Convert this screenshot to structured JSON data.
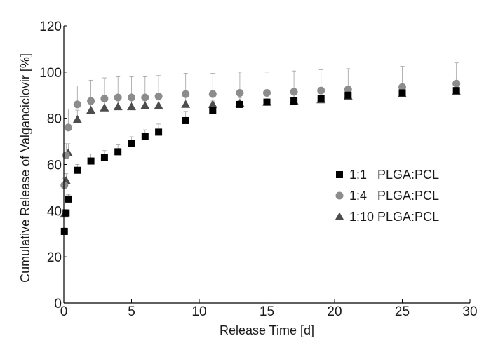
{
  "chart_data": {
    "type": "scatter",
    "xlabel": "Release Time [d]",
    "ylabel": "Cumulative Release of Valganciclovir [%]",
    "xlim": [
      0,
      30
    ],
    "ylim": [
      0,
      120
    ],
    "xticks": [
      "0",
      "5",
      "10",
      "15",
      "20",
      "25",
      "30"
    ],
    "yticks": [
      "0",
      "20",
      "40",
      "60",
      "80",
      "100",
      "120"
    ],
    "grid": false,
    "legend_position": "right",
    "series": [
      {
        "name": "1:1   PLGA:PCL",
        "marker": "square",
        "color": "#000000",
        "points": [
          {
            "x": 0.04,
            "y": 31,
            "err": 1.5
          },
          {
            "x": 0.17,
            "y": 39,
            "err": 1.5
          },
          {
            "x": 0.33,
            "y": 45,
            "err": 2
          },
          {
            "x": 1,
            "y": 57.5,
            "err": 2.5
          },
          {
            "x": 2,
            "y": 61.5,
            "err": 3
          },
          {
            "x": 3,
            "y": 63,
            "err": 3
          },
          {
            "x": 4,
            "y": 65.5,
            "err": 3
          },
          {
            "x": 5,
            "y": 69,
            "err": 3
          },
          {
            "x": 6,
            "y": 72,
            "err": 3
          },
          {
            "x": 7,
            "y": 74,
            "err": 3.5
          },
          {
            "x": 9,
            "y": 79,
            "err": 4
          },
          {
            "x": 11,
            "y": 83.5,
            "err": 4
          },
          {
            "x": 13,
            "y": 86,
            "err": 3
          },
          {
            "x": 15,
            "y": 87,
            "err": 3
          },
          {
            "x": 17,
            "y": 87.5,
            "err": 3
          },
          {
            "x": 19,
            "y": 88.5,
            "err": 3
          },
          {
            "x": 21,
            "y": 90,
            "err": 3
          },
          {
            "x": 25,
            "y": 91,
            "err": 3
          },
          {
            "x": 29,
            "y": 92,
            "err": 3
          }
        ]
      },
      {
        "name": "1:4   PLGA:PCL",
        "marker": "circle",
        "color": "#8c8c8c",
        "points": [
          {
            "x": 0.04,
            "y": 51,
            "err": 3
          },
          {
            "x": 0.17,
            "y": 64,
            "err": 5
          },
          {
            "x": 0.33,
            "y": 76,
            "err": 8
          },
          {
            "x": 1,
            "y": 86,
            "err": 8
          },
          {
            "x": 2,
            "y": 87.5,
            "err": 9
          },
          {
            "x": 3,
            "y": 88.5,
            "err": 9
          },
          {
            "x": 4,
            "y": 89,
            "err": 9
          },
          {
            "x": 5,
            "y": 89,
            "err": 9
          },
          {
            "x": 6,
            "y": 89,
            "err": 9
          },
          {
            "x": 7,
            "y": 89.5,
            "err": 9
          },
          {
            "x": 9,
            "y": 90.5,
            "err": 9
          },
          {
            "x": 11,
            "y": 90.5,
            "err": 9
          },
          {
            "x": 13,
            "y": 91,
            "err": 9
          },
          {
            "x": 15,
            "y": 91,
            "err": 9
          },
          {
            "x": 17,
            "y": 91.5,
            "err": 9
          },
          {
            "x": 19,
            "y": 92,
            "err": 9
          },
          {
            "x": 21,
            "y": 92.5,
            "err": 9
          },
          {
            "x": 25,
            "y": 93.5,
            "err": 9
          },
          {
            "x": 29,
            "y": 95,
            "err": 9
          }
        ]
      },
      {
        "name": "1:10 PLGA:PCL",
        "marker": "triangle",
        "color": "#4d4d4d",
        "points": [
          {
            "x": 0.04,
            "y": 38.5,
            "err": 2
          },
          {
            "x": 0.17,
            "y": 53,
            "err": 3
          },
          {
            "x": 0.33,
            "y": 65,
            "err": 4
          },
          {
            "x": 1,
            "y": 79.5,
            "err": 4
          },
          {
            "x": 2,
            "y": 83.5,
            "err": 4
          },
          {
            "x": 3,
            "y": 84.5,
            "err": 4
          },
          {
            "x": 4,
            "y": 85,
            "err": 4
          },
          {
            "x": 5,
            "y": 85,
            "err": 4
          },
          {
            "x": 6,
            "y": 85.5,
            "err": 4
          },
          {
            "x": 7,
            "y": 85.5,
            "err": 4
          },
          {
            "x": 9,
            "y": 86,
            "err": 4
          },
          {
            "x": 11,
            "y": 86,
            "err": 4
          },
          {
            "x": 13,
            "y": 86.5,
            "err": 4
          },
          {
            "x": 15,
            "y": 87,
            "err": 4
          },
          {
            "x": 17,
            "y": 87.5,
            "err": 4
          },
          {
            "x": 19,
            "y": 88,
            "err": 4
          },
          {
            "x": 21,
            "y": 89.5,
            "err": 4
          },
          {
            "x": 25,
            "y": 90.5,
            "err": 4
          },
          {
            "x": 29,
            "y": 91.5,
            "err": 4
          }
        ]
      }
    ]
  }
}
